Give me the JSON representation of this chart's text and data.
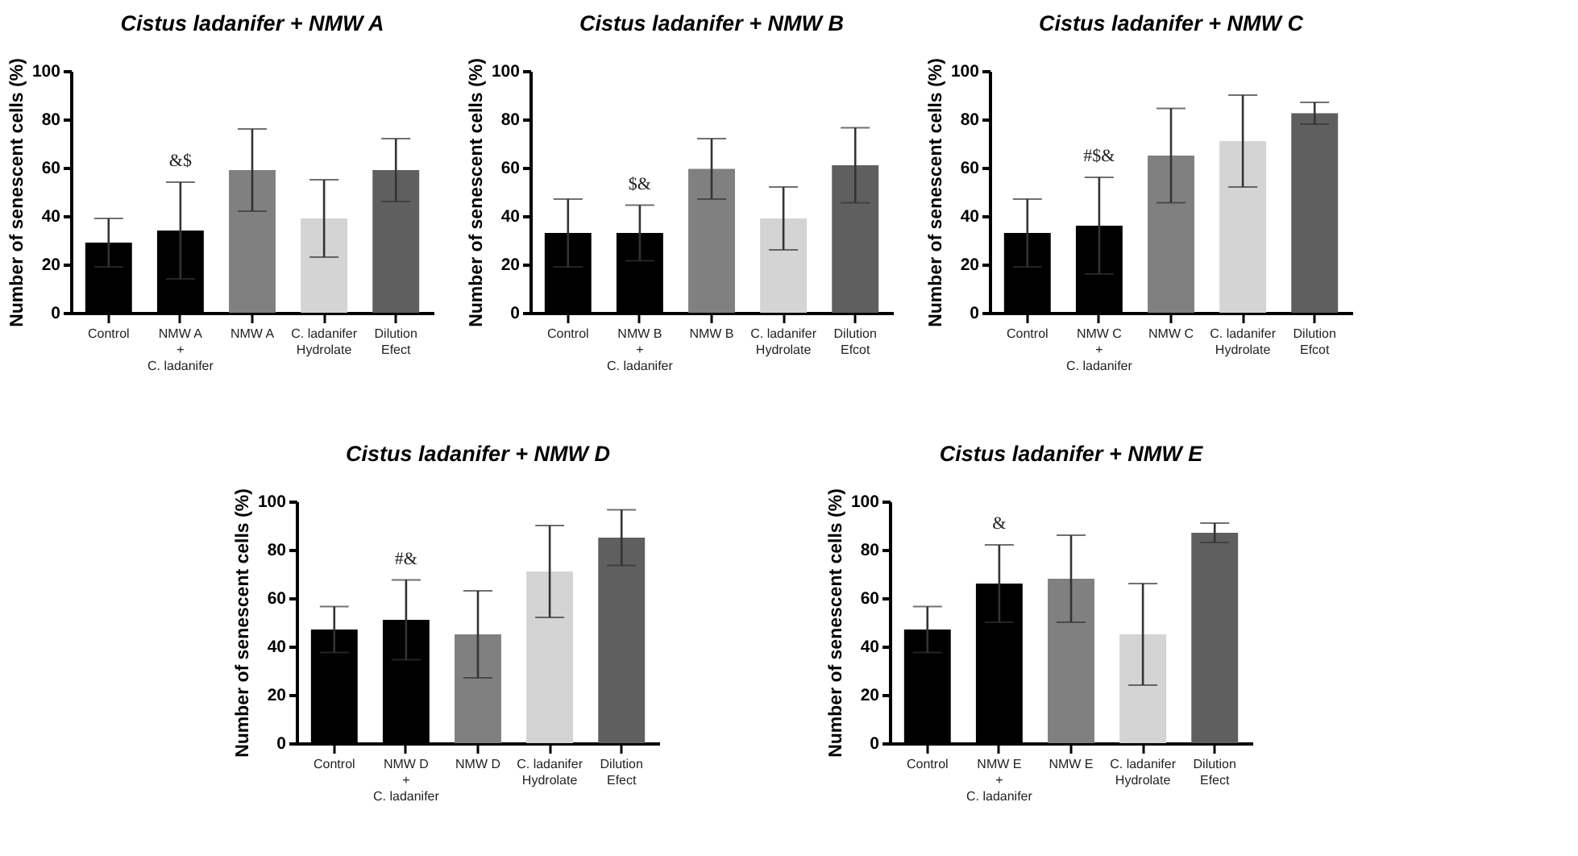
{
  "chart_data": [
    {
      "type": "bar",
      "title": "Cistus ladanifer + NMW A",
      "ylabel": "Number of senescent cells (%)",
      "categories": [
        "Control",
        "NMW A\n+\nC. ladanifer",
        "NMW A",
        "C. ladanifer\nHydrolate",
        "Dilution\nEfect"
      ],
      "values": [
        29,
        34,
        59,
        39,
        59
      ],
      "errors": [
        10,
        20,
        17,
        16,
        13
      ],
      "colors": [
        "#000000",
        "#000000",
        "#808080",
        "#d4d4d4",
        "#5f5f5f"
      ],
      "ylim": [
        0,
        100
      ],
      "yticks": [
        0,
        20,
        40,
        60,
        80,
        100
      ],
      "annotations": [
        "&$"
      ]
    },
    {
      "type": "bar",
      "title": "Cistus ladanifer + NMW B",
      "ylabel": "Number of senescent cells (%)",
      "categories": [
        "Control",
        "NMW B\n+\nC. ladanifer",
        "NMW B",
        "C. ladanifer\nHydrolate",
        "Dilution\nEfcot"
      ],
      "values": [
        33,
        33,
        59.5,
        39,
        61
      ],
      "errors": [
        14,
        11.5,
        12.5,
        13,
        15.5
      ],
      "colors": [
        "#000000",
        "#000000",
        "#808080",
        "#d4d4d4",
        "#5f5f5f"
      ],
      "ylim": [
        0,
        100
      ],
      "yticks": [
        0,
        20,
        40,
        60,
        80,
        100
      ],
      "annotations": [
        "$&"
      ]
    },
    {
      "type": "bar",
      "title": "Cistus ladanifer + NMW C",
      "ylabel": "Number of senescent cells (%)",
      "categories": [
        "Control",
        "NMW C\n+\nC. ladanifer",
        "NMW C",
        "C. ladanifer\nHydrolate",
        "Dilution\nEfcot"
      ],
      "values": [
        33,
        36,
        65,
        71,
        82.5
      ],
      "errors": [
        14,
        20,
        19.5,
        19,
        4.5
      ],
      "colors": [
        "#000000",
        "#000000",
        "#808080",
        "#d4d4d4",
        "#5f5f5f"
      ],
      "ylim": [
        0,
        100
      ],
      "yticks": [
        0,
        20,
        40,
        60,
        80,
        100
      ],
      "annotations": [
        "#$&"
      ]
    },
    {
      "type": "bar",
      "title": "Cistus ladanifer  + NMW D",
      "ylabel": "Number of senescent cells (%)",
      "categories": [
        "Control",
        "NMW D\n+\nC. ladanifer",
        "NMW D",
        "C. ladanifer\nHydrolate",
        "Dilution\nEfect"
      ],
      "values": [
        47,
        51,
        45,
        71,
        85
      ],
      "errors": [
        9.5,
        16.5,
        18,
        19,
        11.5
      ],
      "colors": [
        "#000000",
        "#000000",
        "#808080",
        "#d4d4d4",
        "#5f5f5f"
      ],
      "ylim": [
        0,
        100
      ],
      "yticks": [
        0,
        20,
        40,
        60,
        80,
        100
      ],
      "annotations": [
        "#&"
      ]
    },
    {
      "type": "bar",
      "title": "Cistus ladanifer  + NMW E",
      "ylabel": "Number of senescent cells (%)",
      "categories": [
        "Control",
        "NMW E\n+\nC. ladanifer",
        "NMW E",
        "C. ladanifer\nHydrolate",
        "Dilution\nEfect"
      ],
      "values": [
        47,
        66,
        68,
        45,
        87
      ],
      "errors": [
        9.5,
        16,
        18,
        21,
        4
      ],
      "colors": [
        "#000000",
        "#000000",
        "#808080",
        "#d4d4d4",
        "#5f5f5f"
      ],
      "ylim": [
        0,
        100
      ],
      "yticks": [
        0,
        20,
        40,
        60,
        80,
        100
      ],
      "annotations": [
        "&"
      ]
    }
  ]
}
